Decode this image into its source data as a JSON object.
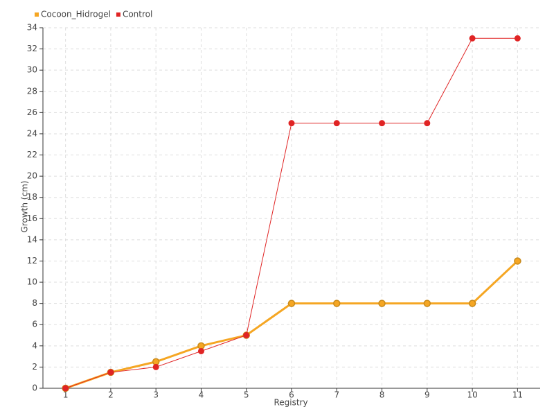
{
  "chart_data": {
    "type": "line",
    "x_label": "Registry",
    "y_label": "Growth (cm)",
    "categories": [
      "1",
      "2",
      "3",
      "4",
      "5",
      "6",
      "7",
      "8",
      "9",
      "10",
      "11"
    ],
    "series": [
      {
        "name": "Cocoon_Hidrogel",
        "color": "#f5a623",
        "values": [
          0,
          1.5,
          2.5,
          4,
          5,
          8,
          8,
          8,
          8,
          8,
          12
        ]
      },
      {
        "name": "Control",
        "color": "#e02424",
        "values": [
          0,
          1.5,
          2,
          3.5,
          5,
          25,
          25,
          25,
          25,
          33,
          33
        ]
      }
    ],
    "ylim": [
      0,
      34
    ],
    "yticks": [
      0,
      2,
      4,
      6,
      8,
      10,
      12,
      14,
      16,
      18,
      20,
      22,
      24,
      26,
      28,
      30,
      32,
      34
    ],
    "grid": true,
    "legend": "top-left"
  }
}
